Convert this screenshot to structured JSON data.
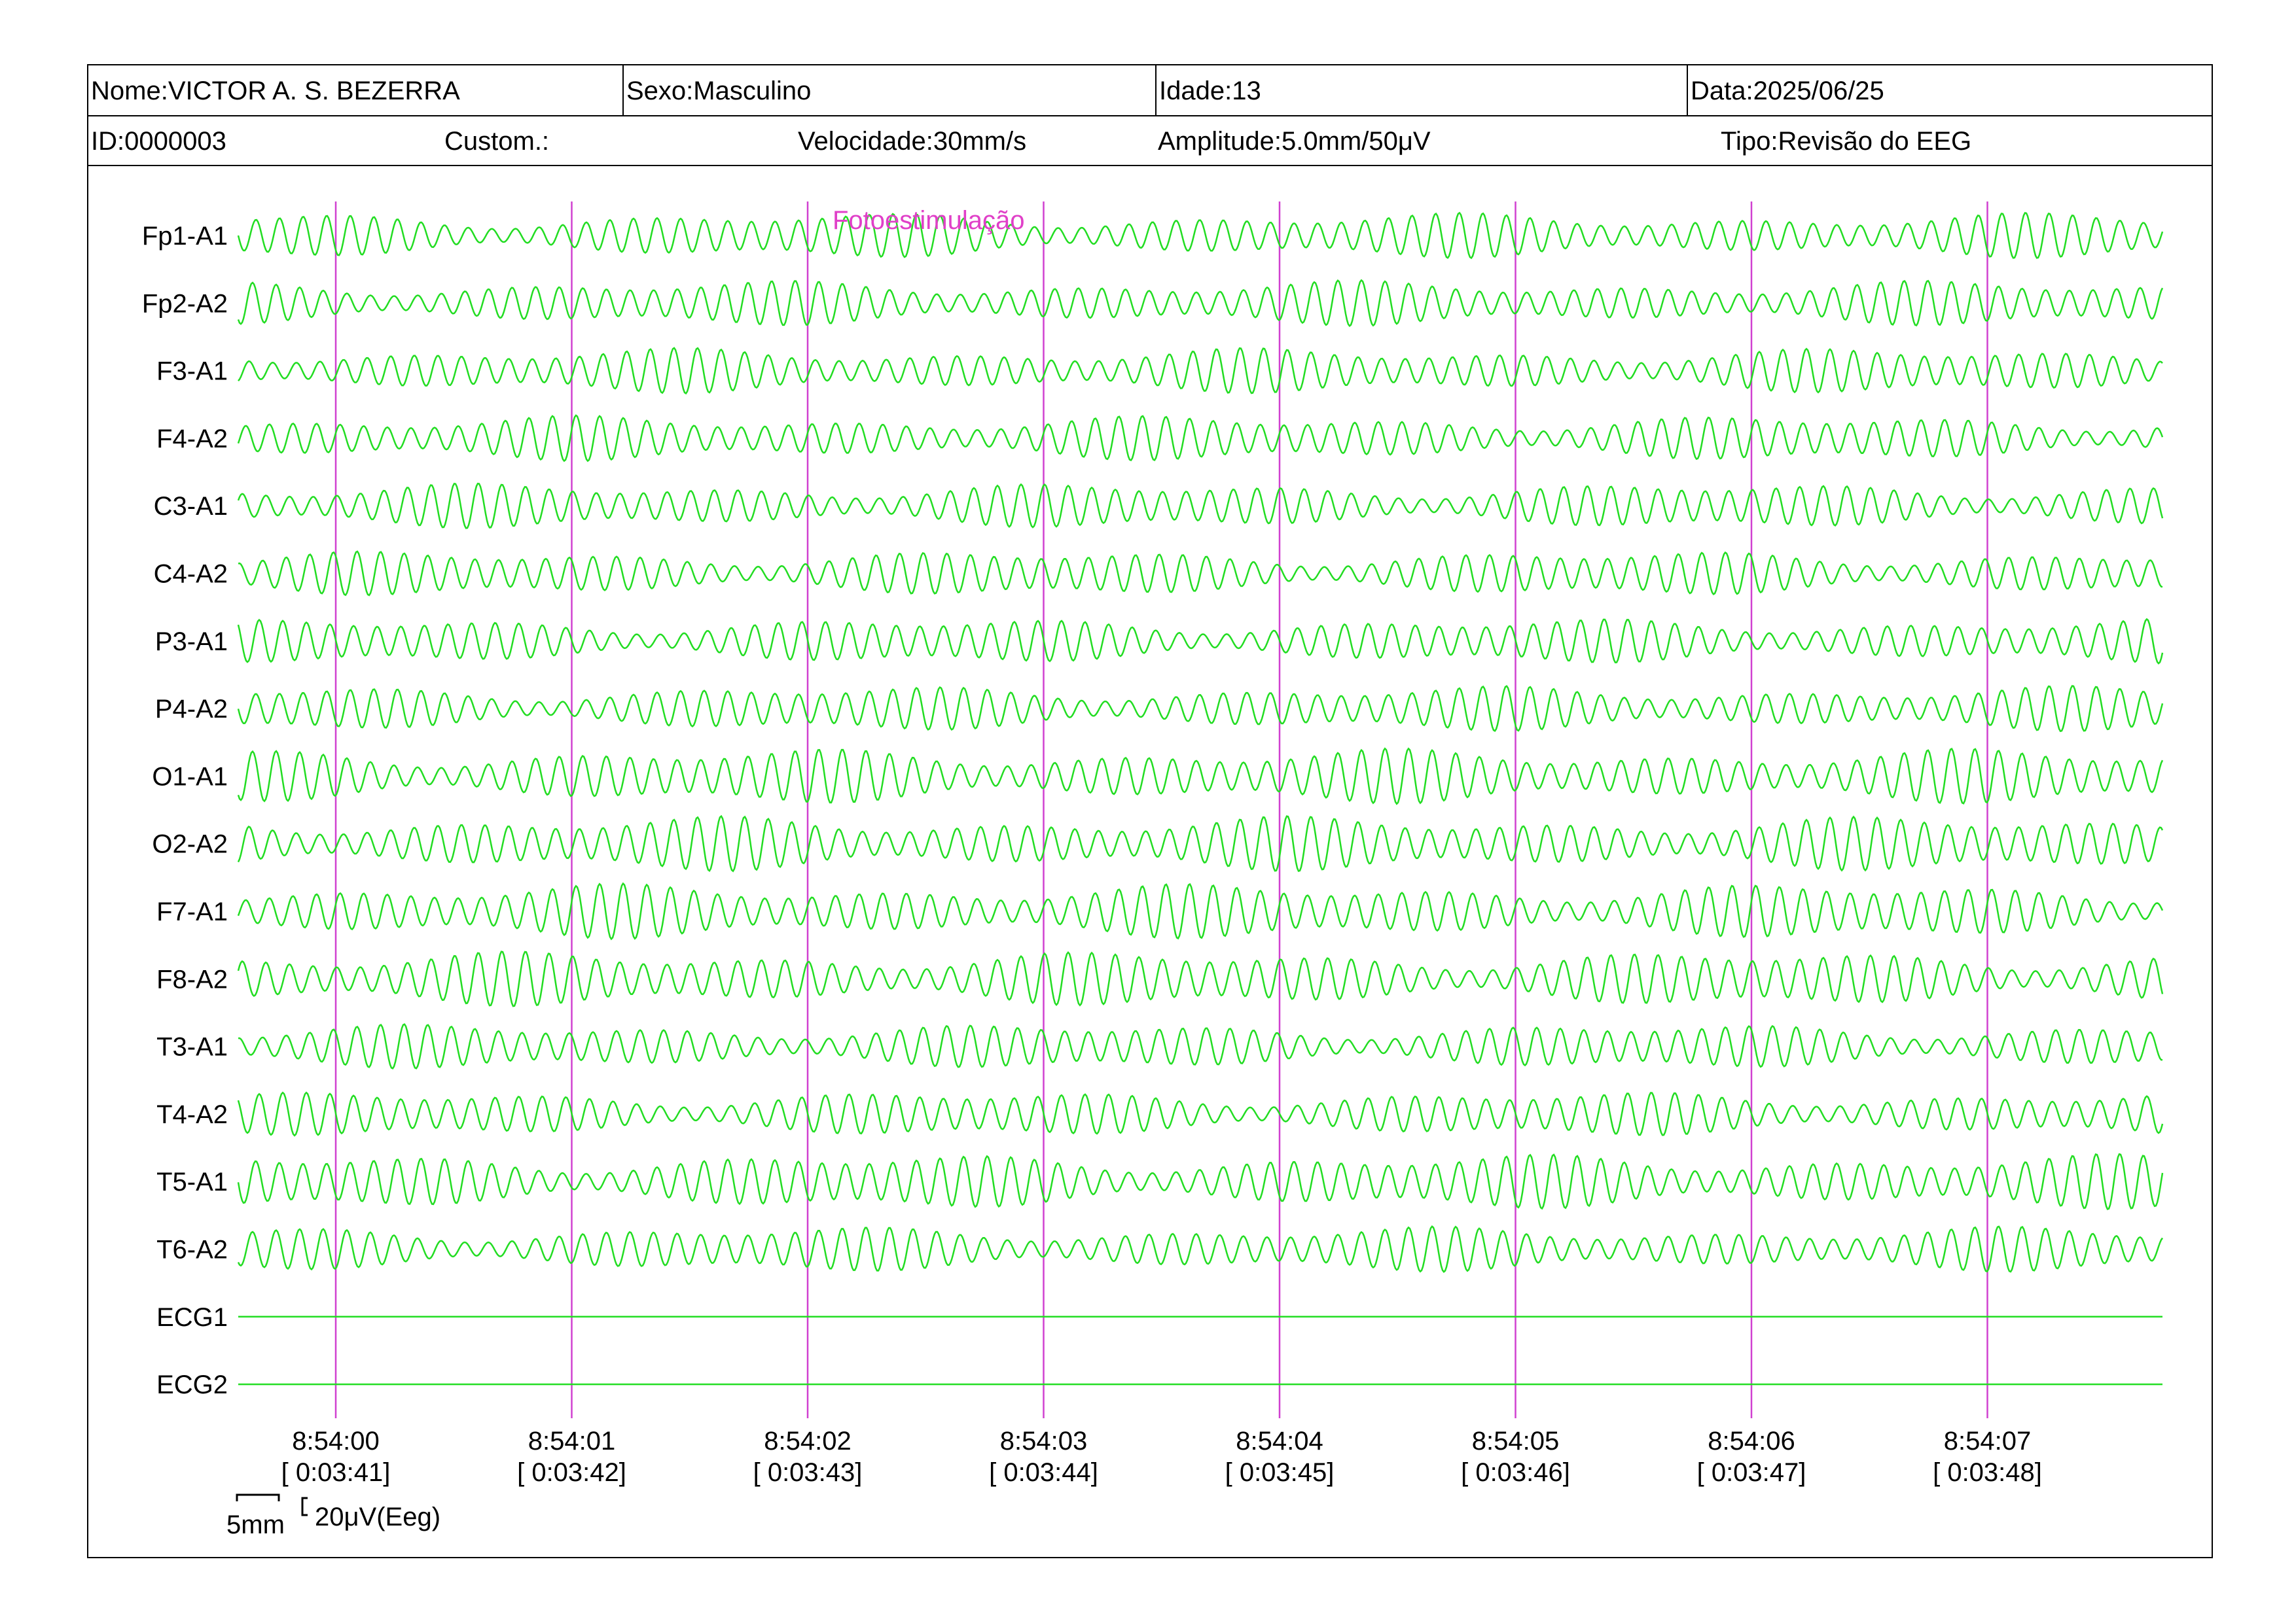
{
  "header": {
    "name": "Nome:VICTOR A. S. BEZERRA",
    "sex": "Sexo:Masculino",
    "age": "Idade:13",
    "date": "Data:2025/06/25",
    "id": "ID:0000003",
    "custom": "Custom.:",
    "speed": "Velocidade:30mm/s",
    "amplitude": "Amplitude:5.0mm/50μV",
    "type": "Tipo:Revisão do EEG"
  },
  "annotation": {
    "label": "Fotoestimulação",
    "color": "#e040c8"
  },
  "scale_bar": {
    "horizontal_label": "5mm",
    "vertical_label": "20μV(Eeg)"
  },
  "colors": {
    "trace": "#22dd22",
    "marker": "#d040d0",
    "annotation": "#e040c8"
  },
  "chart_data": {
    "type": "line",
    "title": "",
    "channels": [
      {
        "label": "Fp1-A1"
      },
      {
        "label": "Fp2-A2"
      },
      {
        "label": "F3-A1"
      },
      {
        "label": "F4-A2"
      },
      {
        "label": "C3-A1"
      },
      {
        "label": "C4-A2"
      },
      {
        "label": "P3-A1"
      },
      {
        "label": "P4-A2"
      },
      {
        "label": "O1-A1"
      },
      {
        "label": "O2-A2"
      },
      {
        "label": "F7-A1"
      },
      {
        "label": "F8-A2"
      },
      {
        "label": "T3-A1"
      },
      {
        "label": "T4-A2"
      },
      {
        "label": "T5-A1"
      },
      {
        "label": "T6-A2"
      },
      {
        "label": "ECG1",
        "flat": true
      },
      {
        "label": "ECG2",
        "flat": true
      }
    ],
    "time_markers": [
      {
        "clock": "8:54:00",
        "elapsed": "[ 0:03:41]"
      },
      {
        "clock": "8:54:01",
        "elapsed": "[ 0:03:42]"
      },
      {
        "clock": "8:54:02",
        "elapsed": "[ 0:03:43]"
      },
      {
        "clock": "8:54:03",
        "elapsed": "[ 0:03:44]"
      },
      {
        "clock": "8:54:04",
        "elapsed": "[ 0:03:45]"
      },
      {
        "clock": "8:54:05",
        "elapsed": "[ 0:03:46]"
      },
      {
        "clock": "8:54:06",
        "elapsed": "[ 0:03:47]"
      },
      {
        "clock": "8:54:07",
        "elapsed": "[ 0:03:48]"
      }
    ],
    "oscillation_hz_approx": 10
  }
}
